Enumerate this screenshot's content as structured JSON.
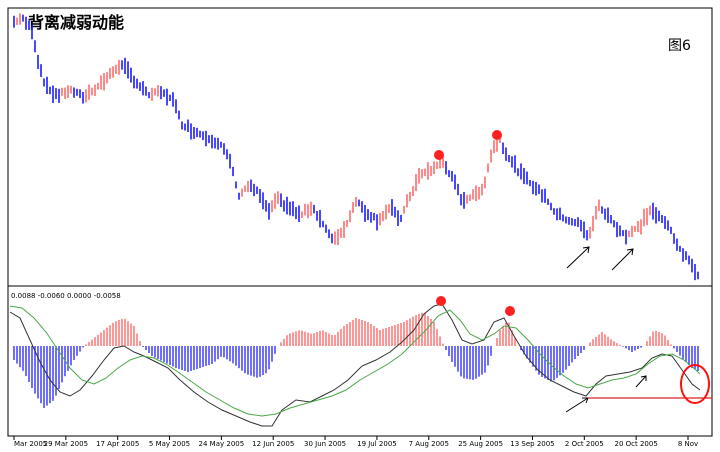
{
  "title": "背离减弱动能",
  "figure_label": "图6",
  "chart_data": [
    {
      "type": "bar",
      "panel": "price",
      "description_of_marks": "OHLC bars, red = up, blue = down",
      "colors": {
        "up": "#ff6a6a",
        "down": "#1a1aff"
      },
      "markers": [
        "red dot at early-Aug top",
        "red dot at late-Aug top",
        "arrow near late Sep",
        "arrow near mid Oct"
      ]
    },
    {
      "type": "line",
      "panel": "MACD",
      "header_values": "0.0088 -0.0060 0.0000 -0.0058",
      "series": [
        {
          "name": "",
          "color": "#333333"
        },
        {
          "name": "",
          "color": "#4aa84a"
        }
      ],
      "histogram_colors": {
        "positive": "#ff6a6a",
        "negative": "#3030ff"
      },
      "reference_line_color": "#e02020"
    }
  ],
  "x_axis": {
    "tick_labels": [
      "Mar 2005",
      "29 Mar 2005",
      "17 Apr 2005",
      "5 May 2005",
      "24 May 2005",
      "12 Jun 2005",
      "30 Jun 2005",
      "19 Jul 2005",
      "7 Aug 2005",
      "25 Aug 2005",
      "13 Sep 2005",
      "2 Oct 2005",
      "20 Oct 2005",
      "8 Nov"
    ]
  }
}
